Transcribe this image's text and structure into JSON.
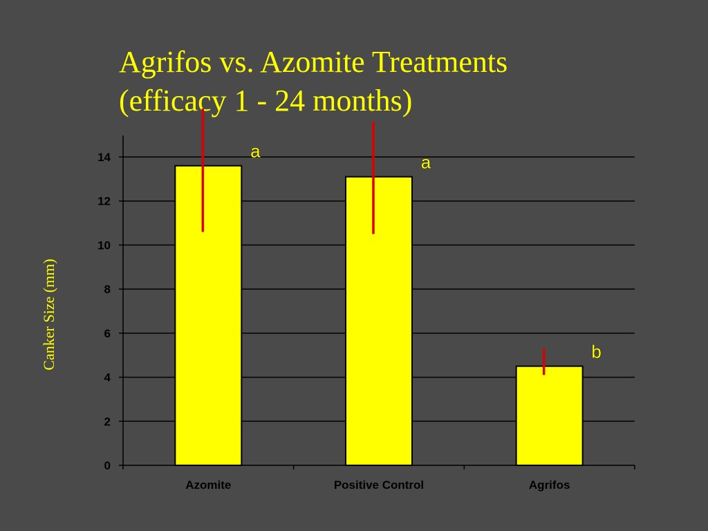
{
  "title": {
    "line1": "Agrifos vs. Azomite Treatments",
    "line2": "(efficacy 1 - 24 months)"
  },
  "chart_data": {
    "type": "bar",
    "categories": [
      "Azomite",
      "Positive Control",
      "Agrifos"
    ],
    "values": [
      13.6,
      13.1,
      4.5
    ],
    "error_bars": [
      {
        "low": 10.6,
        "high": 16.2
      },
      {
        "low": 10.5,
        "high": 15.6
      },
      {
        "low": 4.1,
        "high": 5.3
      }
    ],
    "significance_labels": [
      "a",
      "a",
      "b"
    ],
    "title": "Agrifos vs. Azomite Treatments (efficacy 1 - 24 months)",
    "xlabel": "",
    "ylabel": "Canker Size (mm)",
    "ylim": [
      0,
      14
    ],
    "yticks": [
      0,
      2,
      4,
      6,
      8,
      10,
      12,
      14
    ],
    "grid": true,
    "legend": "none",
    "colors": {
      "background": "#4a4a4a",
      "bar_fill": "#ffff00",
      "bar_stroke": "#000000",
      "error_bar": "#dd0000",
      "gridline": "#000000",
      "text_accent": "#ffff00"
    }
  }
}
